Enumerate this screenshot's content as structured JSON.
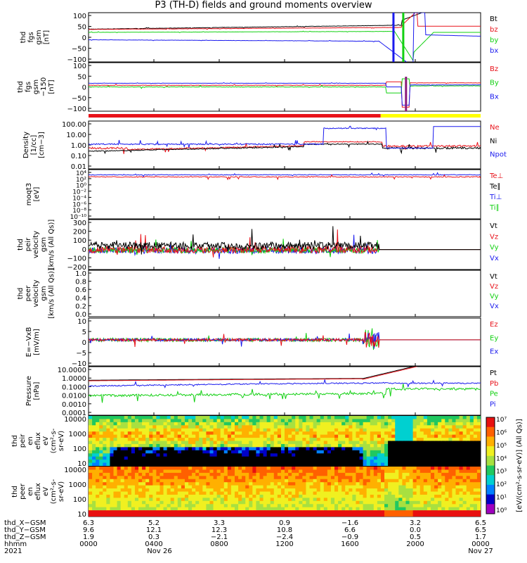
{
  "title": "P3 (TH-D) fields and ground moments overview",
  "colors": {
    "black": "#000000",
    "red": "#e8121a",
    "green": "#12d012",
    "blue": "#1a1aee",
    "yellow": "#ffff00",
    "cyan": "#20c8e8"
  },
  "chart_data": [
    {
      "type": "line",
      "ylabel": [
        "thd",
        "fgs",
        "gsm",
        "[nT]"
      ],
      "ylim": [
        -100,
        100
      ],
      "ytick_labels": [
        "100",
        "50",
        "0",
        "−50",
        "−100"
      ],
      "series": [
        {
          "name": "Bt",
          "color": "black"
        },
        {
          "name": "bz",
          "color": "red"
        },
        {
          "name": "by",
          "color": "green"
        },
        {
          "name": "bx",
          "color": "blue"
        }
      ]
    },
    {
      "type": "line",
      "ylabel": [
        "thd",
        "fgs",
        "gsm",
        "−150",
        "[nT]"
      ],
      "ylim": [
        -130,
        110
      ],
      "ytick_labels": [
        "100",
        "50",
        "0",
        "−50",
        "−100"
      ],
      "series": [
        {
          "name": "Bz",
          "color": "red"
        },
        {
          "name": "By",
          "color": "green"
        },
        {
          "name": "Bx",
          "color": "blue"
        }
      ]
    },
    {
      "type": "line",
      "ylabel": [
        "Density",
        "[1/cc]",
        "[cm−3]"
      ],
      "scale": "log",
      "ylim": [
        0.005,
        200
      ],
      "ytick_labels": [
        "100.00",
        "10.00",
        "1.00",
        "0.10",
        "0.01"
      ],
      "series": [
        {
          "name": "Ne",
          "color": "red"
        },
        {
          "name": "Ni",
          "color": "black"
        },
        {
          "name": "Npot",
          "color": "blue"
        }
      ]
    },
    {
      "type": "line",
      "ylabel": [
        "moqt3",
        "[eV]"
      ],
      "scale": "log",
      "ylim": [
        1e-12,
        100000.0
      ],
      "ytick_labels": [
        "10⁴",
        "10²",
        "10⁰",
        "10⁻²",
        "10⁻⁴",
        "10⁻⁶",
        "10⁻⁸",
        "10⁻¹⁰"
      ],
      "series": [
        {
          "name": "Te⊥",
          "color": "red"
        },
        {
          "name": "Te∥",
          "color": "black"
        },
        {
          "name": "Ti⊥",
          "color": "blue"
        },
        {
          "name": "Ti∥",
          "color": "green"
        }
      ]
    },
    {
      "type": "line",
      "ylabel": [
        "thd",
        "peir",
        "velocity",
        "gsm",
        "[km/s (All Qs)]"
      ],
      "ylim": [
        -200,
        300
      ],
      "ytick_labels": [
        "300",
        "200",
        "100",
        "0",
        "−100",
        "−200"
      ],
      "series": [
        {
          "name": "Vt",
          "color": "black"
        },
        {
          "name": "Vz",
          "color": "red"
        },
        {
          "name": "Vy",
          "color": "green"
        },
        {
          "name": "Vx",
          "color": "blue"
        }
      ]
    },
    {
      "type": "line",
      "ylabel": [
        "thd",
        "peer",
        "velocity",
        "gsm",
        "[km/s (All Qs)]"
      ],
      "ylim": [
        0,
        1
      ],
      "ytick_labels": [
        "1.0",
        "0.8",
        "0.6",
        "0.4",
        "0.2",
        "0.0"
      ],
      "series": [
        {
          "name": "Vt",
          "color": "black"
        },
        {
          "name": "Vz",
          "color": "red"
        },
        {
          "name": "Vy",
          "color": "green"
        },
        {
          "name": "Vx",
          "color": "blue"
        }
      ]
    },
    {
      "type": "line",
      "ylabel": [
        "E=−VxB",
        "[mV/m]"
      ],
      "ylim": [
        -12,
        10
      ],
      "ytick_labels": [
        "10",
        "5",
        "0",
        "−5",
        "−10"
      ],
      "series": [
        {
          "name": "Ez",
          "color": "red"
        },
        {
          "name": "Ey",
          "color": "green"
        },
        {
          "name": "Ex",
          "color": "blue"
        }
      ]
    },
    {
      "type": "line",
      "ylabel": [
        "Pressure",
        "[nPa]"
      ],
      "scale": "log",
      "ylim": [
        0.0001,
        10
      ],
      "ytick_labels": [
        "10.0000",
        "1.0000",
        "0.1000",
        "0.0100",
        "0.0010",
        "0.0001"
      ],
      "series": [
        {
          "name": "Pt",
          "color": "black"
        },
        {
          "name": "Pb",
          "color": "red"
        },
        {
          "name": "Pe",
          "color": "green"
        },
        {
          "name": "Pi",
          "color": "blue"
        }
      ]
    },
    {
      "type": "heatmap",
      "ylabel": [
        "thd",
        "peir",
        "en",
        "eflux",
        "eV",
        "(cm²-s-",
        "sr-eV)"
      ],
      "scale": "log",
      "ytick_labels": [
        "10000",
        "1000",
        "100",
        "10"
      ]
    },
    {
      "type": "heatmap",
      "ylabel": [
        "thd",
        "peer",
        "en",
        "eflux",
        "eV",
        "(cm²-s-",
        "sr-eV)"
      ],
      "scale": "log",
      "ytick_labels": [
        "10000",
        "1000",
        "100",
        "10"
      ]
    }
  ],
  "colorbar": {
    "label": "[eV/(cm²-s-sr-eV)] (All Qs)]",
    "ticks": [
      "10⁷",
      "10⁶",
      "10⁵",
      "10⁴",
      "10³",
      "10²",
      "10¹",
      "10⁰"
    ]
  },
  "xaxis": {
    "rows": [
      {
        "label": "thd_X−GSM",
        "values": [
          "6.3",
          "5.2",
          "3.3",
          "0.9",
          "−1.6",
          "3.2",
          "6.5"
        ]
      },
      {
        "label": "thd_Y−GSM",
        "values": [
          "9.6",
          "12.1",
          "12.3",
          "10.8",
          "6.6",
          "0.0",
          "6.5"
        ]
      },
      {
        "label": "thd_Z−GSM",
        "values": [
          "1.9",
          "0.3",
          "−2.1",
          "−2.4",
          "−0.9",
          "0.5",
          "1.7"
        ]
      },
      {
        "label": "hhmm",
        "values": [
          "0000",
          "0400",
          "0800",
          "1200",
          "1600",
          "2000",
          "0000"
        ]
      }
    ],
    "year": "2021",
    "dates": [
      "Nov 26",
      "Nov 27"
    ]
  }
}
